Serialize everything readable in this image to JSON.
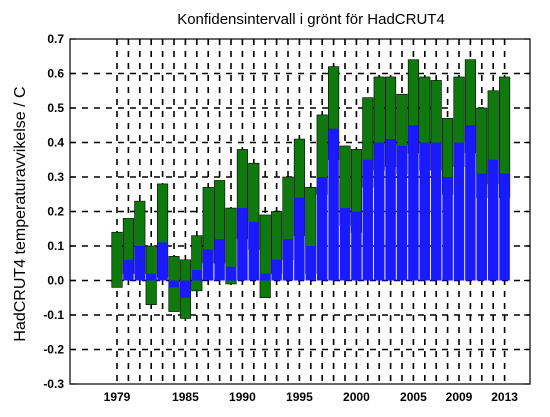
{
  "chart_data": {
    "type": "bar",
    "title": "Konfidensintervall i grönt för HadCRUT4",
    "xlabel": "",
    "ylabel": "HadCRUT4 temperaturavvikelse / C",
    "ylim": [
      -0.3,
      0.7
    ],
    "yticks": [
      "-0.3",
      "-0.2",
      "-0.1",
      "0.0",
      "0.1",
      "0.2",
      "0.3",
      "0.4",
      "0.5",
      "0.6",
      "0.7"
    ],
    "xtick_labels": [
      "1979",
      "1985",
      "1990",
      "1995",
      "2000",
      "2005",
      "2009",
      "2013"
    ],
    "xtick_years": [
      1979,
      1985,
      1990,
      1995,
      2000,
      2005,
      2009,
      2013
    ],
    "grid": true,
    "x": [
      1979,
      1980,
      1981,
      1982,
      1983,
      1984,
      1985,
      1986,
      1987,
      1988,
      1989,
      1990,
      1991,
      1992,
      1993,
      1994,
      1995,
      1996,
      1997,
      1998,
      1999,
      2000,
      2001,
      2002,
      2003,
      2004,
      2005,
      2006,
      2007,
      2008,
      2009,
      2010,
      2011,
      2012,
      2013
    ],
    "series": [
      {
        "role": "anomaly",
        "color": "#1a1aff",
        "values": [
          0.0,
          0.06,
          0.1,
          0.02,
          0.11,
          -0.02,
          -0.05,
          0.03,
          0.09,
          0.12,
          0.04,
          0.21,
          0.17,
          0.02,
          0.06,
          0.12,
          0.24,
          0.1,
          0.3,
          0.44,
          0.21,
          0.2,
          0.35,
          0.4,
          0.41,
          0.39,
          0.45,
          0.4,
          0.4,
          0.3,
          0.4,
          0.45,
          0.31,
          0.35,
          0.31
        ]
      },
      {
        "role": "confidence_interval",
        "color": "#0e7a0e",
        "lower": [
          -0.02,
          0.02,
          0.02,
          -0.07,
          0.01,
          -0.09,
          -0.11,
          -0.03,
          0.05,
          0.05,
          -0.01,
          0.12,
          0.09,
          -0.05,
          0.02,
          0.06,
          0.13,
          0.02,
          0.25,
          0.35,
          0.16,
          0.14,
          0.27,
          0.32,
          0.33,
          0.31,
          0.37,
          0.32,
          0.32,
          0.25,
          0.33,
          0.37,
          0.24,
          0.28,
          0.24
        ],
        "upper": [
          0.14,
          0.18,
          0.23,
          0.1,
          0.28,
          0.07,
          0.06,
          0.13,
          0.27,
          0.29,
          0.21,
          0.38,
          0.34,
          0.19,
          0.2,
          0.3,
          0.41,
          0.27,
          0.48,
          0.62,
          0.39,
          0.38,
          0.53,
          0.59,
          0.59,
          0.54,
          0.64,
          0.59,
          0.58,
          0.47,
          0.59,
          0.64,
          0.5,
          0.55,
          0.59
        ]
      }
    ]
  }
}
